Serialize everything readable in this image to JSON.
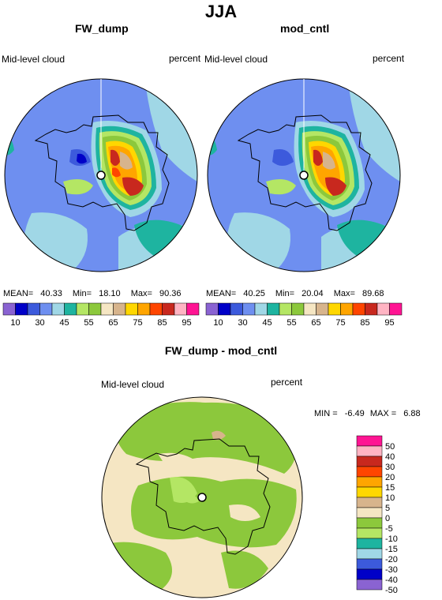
{
  "page_title": "JJA",
  "panels": [
    {
      "title": "FW_dump",
      "variable_label": "Mid-level cloud",
      "units_label": "percent",
      "stats": {
        "mean_label": "MEAN=",
        "mean_value": "40.33",
        "min_label": "Min=",
        "min_value": "18.10",
        "max_label": "Max=",
        "max_value": "90.36"
      }
    },
    {
      "title": "mod_cntl",
      "variable_label": "Mid-level cloud",
      "units_label": "percent",
      "stats": {
        "mean_label": "MEAN=",
        "mean_value": "40.25",
        "min_label": "Min=",
        "min_value": "20.04",
        "max_label": "Max=",
        "max_value": "89.68"
      }
    },
    {
      "title": "FW_dump - mod_cntl",
      "variable_label": "Mid-level cloud",
      "units_label": "percent",
      "stats": {
        "min_label": "MIN =",
        "min_value": "-6.49",
        "max_label": "MAX =",
        "max_value": "6.88"
      }
    }
  ],
  "colorbar_top": {
    "colors": [
      "#8a63d2",
      "#0000c8",
      "#3c5adc",
      "#6e8ff0",
      "#a0d7e6",
      "#1eb4a0",
      "#b4e664",
      "#8cc83c",
      "#f5e6c3",
      "#d7b48c",
      "#ffd700",
      "#ffa500",
      "#ff4500",
      "#c8281e",
      "#ffb4c3",
      "#ff1493"
    ],
    "labels": [
      "10",
      "30",
      "45",
      "55",
      "65",
      "75",
      "85",
      "95"
    ]
  },
  "colorbar_diff": {
    "colors": [
      "#ff1493",
      "#ffb4c3",
      "#c8281e",
      "#ff4500",
      "#ffa500",
      "#ffd700",
      "#d7b48c",
      "#f5e6c3",
      "#8cc83c",
      "#b4e664",
      "#1eb4a0",
      "#a0d7e6",
      "#3c5adc",
      "#0000c8",
      "#8a63d2"
    ],
    "labels": [
      "50",
      "40",
      "30",
      "20",
      "15",
      "10",
      "5",
      "0",
      "-5",
      "-10",
      "-15",
      "-20",
      "-30",
      "-40",
      "-50"
    ]
  }
}
